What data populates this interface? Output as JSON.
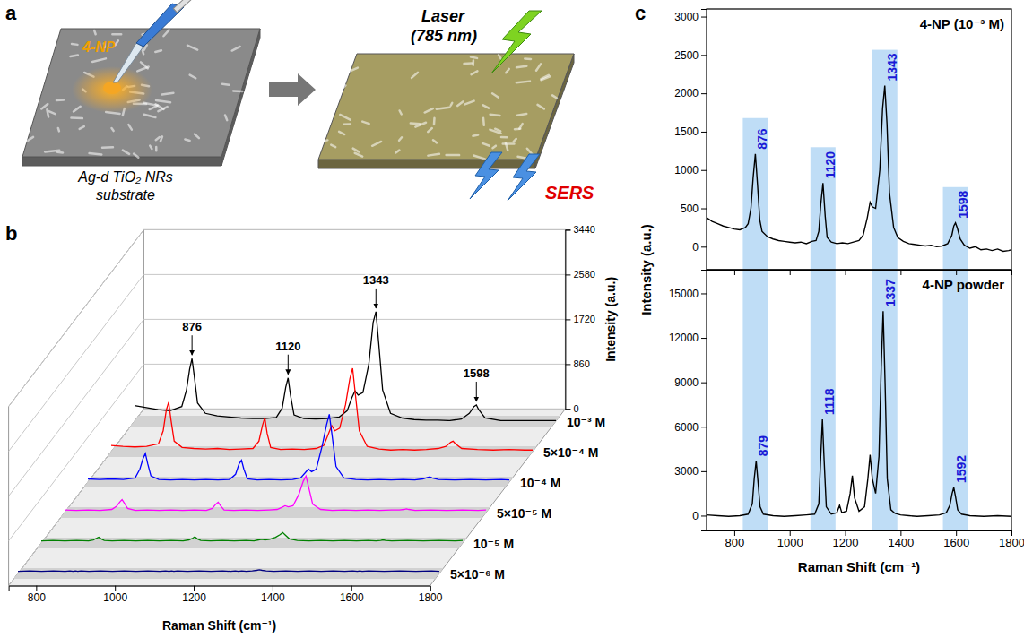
{
  "diagram": {
    "panel_label": "a",
    "reagent": "4-NP",
    "substrate": [
      "Ag-d TiO₂ NRs",
      "substrate"
    ],
    "laser": [
      "Laser",
      "(785 nm)"
    ],
    "signal": "SERS"
  },
  "chart_data": [
    {
      "type": "waterfall",
      "panel_label": "b",
      "xlabel": "Raman Shift (cm⁻¹)",
      "ylabel": "Intensity (a.u.)",
      "xlim": [
        730,
        1800
      ],
      "ylim": [
        0,
        3440
      ],
      "xticks": [
        800,
        1000,
        1200,
        1400,
        1600,
        1800
      ],
      "yticks": [
        0,
        860,
        1720,
        2580,
        3440
      ],
      "grid": true,
      "x": [
        730,
        760,
        790,
        820,
        850,
        862,
        870,
        876,
        882,
        890,
        910,
        940,
        970,
        1000,
        1030,
        1060,
        1090,
        1105,
        1114,
        1120,
        1126,
        1135,
        1160,
        1190,
        1220,
        1250,
        1270,
        1282,
        1290,
        1298,
        1310,
        1325,
        1336,
        1343,
        1350,
        1360,
        1380,
        1410,
        1440,
        1470,
        1500,
        1530,
        1560,
        1580,
        1592,
        1598,
        1604,
        1620,
        1660,
        1700,
        1740,
        1780,
        1800
      ],
      "series": [
        {
          "name": "10⁻³ M",
          "color": "#000000",
          "values": [
            300,
            260,
            220,
            200,
            280,
            600,
            1000,
            1200,
            850,
            350,
            150,
            100,
            80,
            60,
            50,
            50,
            70,
            250,
            650,
            830,
            500,
            120,
            50,
            40,
            50,
            80,
            200,
            450,
            580,
            500,
            550,
            1100,
            1900,
            2100,
            1500,
            600,
            150,
            60,
            30,
            20,
            20,
            10,
            40,
            150,
            280,
            310,
            220,
            60,
            10,
            10,
            10,
            10,
            10
          ]
        },
        {
          "name": "5×10⁻⁴ M",
          "color": "#ff0000",
          "values": [
            120,
            100,
            90,
            100,
            150,
            400,
            800,
            950,
            600,
            200,
            80,
            60,
            50,
            60,
            40,
            50,
            60,
            200,
            500,
            650,
            350,
            80,
            40,
            50,
            40,
            60,
            120,
            350,
            500,
            400,
            450,
            900,
            1400,
            1600,
            1100,
            400,
            100,
            50,
            30,
            40,
            30,
            40,
            60,
            100,
            180,
            200,
            150,
            60,
            40,
            30,
            40,
            30,
            30
          ]
        },
        {
          "name": "10⁻⁴ M",
          "color": "#0000ff",
          "values": [
            60,
            50,
            60,
            50,
            80,
            250,
            450,
            550,
            350,
            120,
            50,
            40,
            50,
            40,
            50,
            40,
            50,
            150,
            350,
            420,
            250,
            60,
            40,
            50,
            40,
            50,
            80,
            180,
            250,
            200,
            250,
            700,
            1100,
            1300,
            900,
            300,
            80,
            50,
            40,
            50,
            40,
            50,
            40,
            60,
            90,
            100,
            80,
            50,
            40,
            50,
            40,
            50,
            40
          ]
        },
        {
          "name": "5×10⁻⁵ M",
          "color": "#ff00ff",
          "values": [
            50,
            40,
            50,
            40,
            60,
            120,
            200,
            250,
            180,
            80,
            40,
            50,
            40,
            50,
            40,
            50,
            40,
            80,
            160,
            200,
            130,
            50,
            40,
            50,
            40,
            50,
            60,
            100,
            130,
            110,
            130,
            350,
            600,
            700,
            480,
            160,
            60,
            40,
            50,
            40,
            50,
            40,
            50,
            50,
            60,
            70,
            60,
            40,
            50,
            40,
            50,
            40,
            50
          ]
        },
        {
          "name": "10⁻⁵ M",
          "color": "#008000",
          "values": [
            40,
            50,
            40,
            50,
            40,
            60,
            90,
            110,
            80,
            50,
            40,
            50,
            40,
            50,
            40,
            50,
            40,
            60,
            90,
            120,
            80,
            50,
            40,
            50,
            40,
            50,
            40,
            60,
            70,
            60,
            70,
            110,
            160,
            200,
            150,
            80,
            50,
            40,
            50,
            40,
            50,
            40,
            50,
            40,
            50,
            60,
            50,
            40,
            50,
            40,
            50,
            40,
            50
          ]
        },
        {
          "name": "5×10⁻⁶ M",
          "color": "#000080",
          "values": [
            40,
            50,
            40,
            50,
            40,
            50,
            40,
            50,
            40,
            50,
            40,
            50,
            40,
            50,
            40,
            50,
            40,
            50,
            40,
            50,
            40,
            50,
            40,
            50,
            40,
            50,
            40,
            50,
            40,
            50,
            40,
            50,
            60,
            70,
            60,
            50,
            40,
            50,
            40,
            50,
            40,
            50,
            40,
            50,
            40,
            50,
            40,
            50,
            40,
            50,
            40,
            50,
            40
          ]
        }
      ],
      "annotations": [
        {
          "x": 876,
          "y": 1200,
          "text": "876"
        },
        {
          "x": 1120,
          "y": 830,
          "text": "1120"
        },
        {
          "x": 1343,
          "y": 2100,
          "text": "1343"
        },
        {
          "x": 1598,
          "y": 310,
          "text": "1598"
        }
      ]
    },
    {
      "type": "line",
      "panel_label": "c",
      "title": "4-NP (10⁻³ M)",
      "ylabel": "Intensity (a.u.)",
      "xlim": [
        700,
        1800
      ],
      "ylim": [
        -300,
        3100
      ],
      "xticks": [
        800,
        1000,
        1200,
        1400,
        1600,
        1800
      ],
      "yticks": [
        0,
        500,
        1000,
        1500,
        2000,
        2500,
        3000
      ],
      "tick_labels": "y",
      "x": [
        700,
        720,
        740,
        760,
        780,
        800,
        820,
        840,
        850,
        860,
        868,
        876,
        884,
        892,
        900,
        920,
        940,
        960,
        980,
        1000,
        1020,
        1040,
        1060,
        1080,
        1095,
        1105,
        1112,
        1120,
        1128,
        1135,
        1150,
        1170,
        1190,
        1210,
        1230,
        1250,
        1265,
        1280,
        1290,
        1298,
        1310,
        1325,
        1335,
        1343,
        1351,
        1360,
        1375,
        1390,
        1410,
        1430,
        1450,
        1470,
        1490,
        1510,
        1530,
        1550,
        1570,
        1585,
        1592,
        1598,
        1605,
        1615,
        1630,
        1650,
        1670,
        1690,
        1710,
        1730,
        1750,
        1770,
        1790,
        1800
      ],
      "series": [
        {
          "color": "#000000",
          "values": [
            380,
            330,
            300,
            270,
            250,
            230,
            220,
            250,
            300,
            500,
            900,
            1210,
            800,
            350,
            200,
            130,
            100,
            80,
            70,
            60,
            50,
            60,
            40,
            70,
            80,
            200,
            550,
            830,
            400,
            120,
            60,
            40,
            50,
            40,
            60,
            80,
            150,
            380,
            580,
            520,
            500,
            1000,
            1800,
            2100,
            1600,
            700,
            250,
            120,
            70,
            40,
            30,
            20,
            10,
            20,
            0,
            10,
            40,
            150,
            270,
            310,
            240,
            100,
            20,
            -20,
            0,
            -40,
            -30,
            -50,
            -30,
            -60,
            -50,
            -40
          ]
        }
      ],
      "annotations": [
        {
          "x": 876,
          "y": 1210,
          "text": "876"
        },
        {
          "x": 1120,
          "y": 830,
          "text": "1120"
        },
        {
          "x": 1343,
          "y": 2100,
          "text": "1343"
        },
        {
          "x": 1598,
          "y": 310,
          "text": "1598"
        }
      ]
    },
    {
      "type": "line",
      "title": "4-NP powder",
      "xlabel": "Raman Shift (cm⁻¹)",
      "xlim": [
        700,
        1800
      ],
      "ylim": [
        -1000,
        16600
      ],
      "xticks": [
        800,
        1000,
        1200,
        1400,
        1600,
        1800
      ],
      "yticks": [
        0,
        3000,
        6000,
        9000,
        12000,
        15000
      ],
      "x": [
        700,
        740,
        780,
        820,
        850,
        865,
        872,
        879,
        886,
        893,
        905,
        940,
        980,
        1020,
        1060,
        1090,
        1105,
        1112,
        1118,
        1124,
        1132,
        1150,
        1170,
        1180,
        1188,
        1205,
        1218,
        1226,
        1234,
        1250,
        1270,
        1282,
        1290,
        1298,
        1310,
        1322,
        1330,
        1337,
        1344,
        1352,
        1365,
        1380,
        1400,
        1430,
        1460,
        1500,
        1540,
        1565,
        1578,
        1586,
        1592,
        1598,
        1606,
        1620,
        1650,
        1700,
        1750,
        1800
      ],
      "series": [
        {
          "color": "#000000",
          "values": [
            50,
            0,
            -50,
            0,
            100,
            800,
            2500,
            3700,
            2200,
            600,
            100,
            0,
            -50,
            0,
            50,
            100,
            800,
            4000,
            6500,
            3800,
            600,
            100,
            200,
            700,
            200,
            300,
            1500,
            2700,
            1200,
            300,
            600,
            2500,
            4100,
            2500,
            1500,
            4000,
            10000,
            13800,
            9000,
            2500,
            400,
            150,
            50,
            0,
            -50,
            0,
            50,
            200,
            700,
            1500,
            1900,
            1300,
            400,
            100,
            0,
            -50,
            0,
            -50
          ]
        }
      ],
      "annotations": [
        {
          "x": 879,
          "y": 3700,
          "text": "879"
        },
        {
          "x": 1118,
          "y": 6500,
          "text": "1118"
        },
        {
          "x": 1337,
          "y": 13800,
          "text": "1337"
        },
        {
          "x": 1592,
          "y": 1900,
          "text": "1592"
        }
      ]
    }
  ]
}
